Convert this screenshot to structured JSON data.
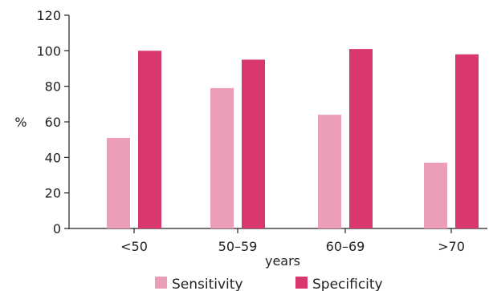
{
  "chart_data": {
    "type": "bar",
    "title": "",
    "xlabel": "years",
    "ylabel": "%",
    "ylim": [
      0,
      120
    ],
    "yticks": [
      "0",
      "20",
      "40",
      "60",
      "80",
      "100",
      "120"
    ],
    "categories": [
      "<50",
      "50–59",
      "60–69",
      ">70"
    ],
    "series": [
      {
        "name": "Sensitivity",
        "color": "#ec9db8",
        "values": [
          51,
          79,
          64,
          37
        ]
      },
      {
        "name": "Specificity",
        "color": "#d8386d",
        "values": [
          100,
          95,
          101,
          98
        ]
      }
    ],
    "legend_position": "bottom",
    "grid": false
  }
}
